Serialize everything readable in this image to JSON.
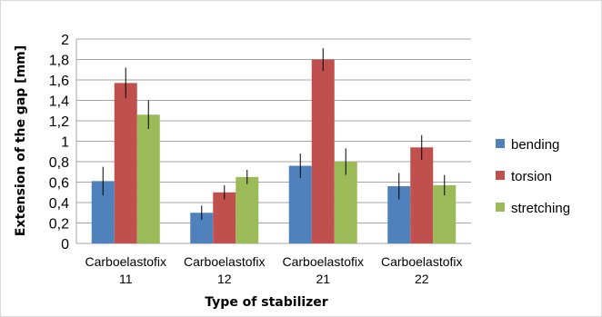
{
  "chart_data": {
    "type": "bar",
    "title": "",
    "xlabel": "Type of stabilizer",
    "ylabel": "Extension of the gap  [mm]",
    "categories": [
      [
        "Carboelastofix",
        "11"
      ],
      [
        "Carboelastofix",
        "12"
      ],
      [
        "Carboelastofix",
        "21"
      ],
      [
        "Carboelastofix",
        "22"
      ]
    ],
    "series": [
      {
        "name": "bending",
        "color": "#4f81bd",
        "values": [
          0.61,
          0.3,
          0.76,
          0.56
        ],
        "errors": [
          0.14,
          0.07,
          0.12,
          0.13
        ]
      },
      {
        "name": "torsion",
        "color": "#c0504d",
        "values": [
          1.57,
          0.5,
          1.8,
          0.94
        ],
        "errors": [
          0.15,
          0.07,
          0.11,
          0.12
        ]
      },
      {
        "name": "stretching",
        "color": "#9bbb59",
        "values": [
          1.26,
          0.65,
          0.8,
          0.57
        ],
        "errors": [
          0.14,
          0.07,
          0.13,
          0.1
        ]
      }
    ],
    "ylim": [
      0,
      2
    ],
    "yticks": [
      "0",
      "0,2",
      "0,4",
      "0,6",
      "0,8",
      "1",
      "1,2",
      "1,4",
      "1,6",
      "1,8",
      "2"
    ],
    "ytick_values": [
      0,
      0.2,
      0.4,
      0.6,
      0.8,
      1.0,
      1.2,
      1.4,
      1.6,
      1.8,
      2.0
    ],
    "grid": true,
    "legend_position": "right"
  }
}
